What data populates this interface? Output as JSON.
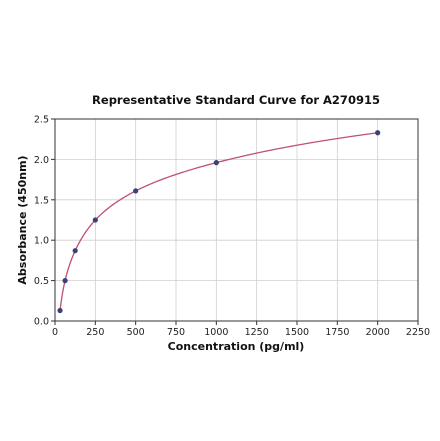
{
  "chart_data": {
    "type": "scatter",
    "title": "Representative Standard Curve for A270915",
    "xlabel": "Concentration (pg/ml)",
    "ylabel": "Absorbance (450nm)",
    "xlim": [
      0,
      2250
    ],
    "ylim": [
      0,
      2.5
    ],
    "xticks": [
      0,
      250,
      500,
      750,
      1000,
      1250,
      1500,
      1750,
      2000,
      2250
    ],
    "yticks": [
      0.0,
      0.5,
      1.0,
      1.5,
      2.0,
      2.5
    ],
    "grid": true,
    "series": [
      {
        "x": [
          31.25,
          62.5,
          125,
          250,
          500,
          1000,
          2000
        ],
        "y": [
          0.13,
          0.5,
          0.87,
          1.25,
          1.61,
          1.96,
          2.33
        ],
        "marker_color": "#3b3f7a",
        "line_color": "#c0506e"
      }
    ]
  }
}
